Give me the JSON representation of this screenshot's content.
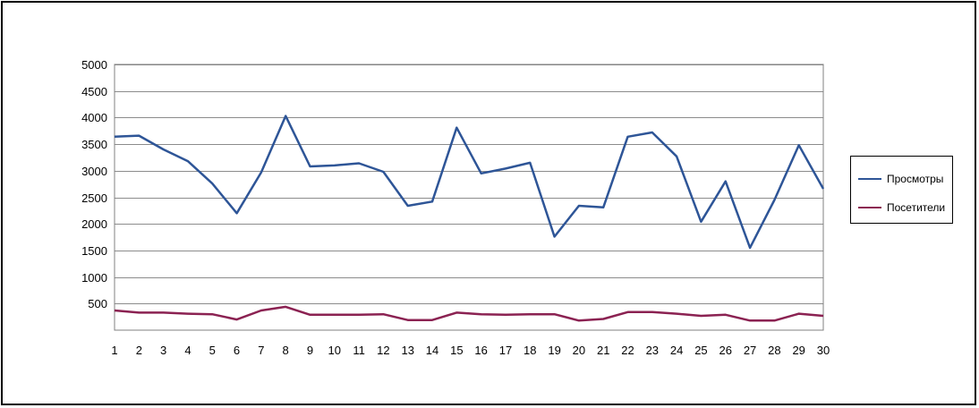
{
  "chart_data": {
    "type": "line",
    "title": "",
    "xlabel": "",
    "ylabel": "",
    "x": [
      1,
      2,
      3,
      4,
      5,
      6,
      7,
      8,
      9,
      10,
      11,
      12,
      13,
      14,
      15,
      16,
      17,
      18,
      19,
      20,
      21,
      22,
      23,
      24,
      25,
      26,
      27,
      28,
      29,
      30
    ],
    "ylim": [
      0,
      5000
    ],
    "y_ticks": [
      500,
      1000,
      1500,
      2000,
      2500,
      3000,
      3500,
      4000,
      4500,
      5000
    ],
    "grid": true,
    "legend_position": "right",
    "series": [
      {
        "name": "Просмотры",
        "color": "#2E5597",
        "values": [
          3640,
          3660,
          3400,
          3180,
          2760,
          2200,
          2970,
          4030,
          3080,
          3100,
          3140,
          2980,
          2340,
          2420,
          3810,
          2950,
          3040,
          3150,
          1760,
          2340,
          2310,
          3640,
          3720,
          3270,
          2040,
          2800,
          1550,
          2450,
          3480,
          2660
        ]
      },
      {
        "name": "Посетители",
        "color": "#8B2252",
        "values": [
          370,
          330,
          330,
          310,
          300,
          200,
          370,
          440,
          290,
          290,
          290,
          300,
          190,
          190,
          330,
          300,
          290,
          300,
          300,
          180,
          210,
          340,
          340,
          310,
          270,
          290,
          180,
          180,
          310,
          270
        ]
      }
    ]
  }
}
